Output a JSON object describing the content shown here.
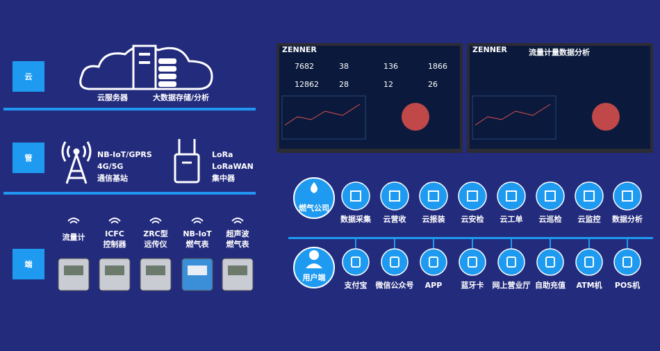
{
  "cloud": {
    "label": "云",
    "captions": [
      "云服务器",
      "大数据存储/分析"
    ]
  },
  "pipe": {
    "label": "管",
    "groups": [
      {
        "lines": [
          "NB-IoT/GPRS",
          "4G/5G",
          "通信基站"
        ]
      },
      {
        "lines": [
          "LoRa",
          "LoRaWAN",
          "集中器"
        ]
      }
    ]
  },
  "edge": {
    "label": "端",
    "devices": [
      {
        "lines": [
          "流量计"
        ]
      },
      {
        "lines": [
          "ICFC",
          "控制器"
        ]
      },
      {
        "lines": [
          "ZRC型",
          "远传仪"
        ]
      },
      {
        "lines": [
          "NB-IoT",
          "燃气表"
        ]
      },
      {
        "lines": [
          "超声波",
          "燃气表"
        ]
      }
    ]
  },
  "screens": [
    {
      "brand": "ZENNER",
      "stats": [
        7682,
        38,
        136,
        1866,
        12862,
        28,
        12,
        26
      ]
    },
    {
      "brand": "ZENNER",
      "title": "流量计量数据分析"
    }
  ],
  "company": {
    "label": "燃气公司",
    "services": [
      "数据采集",
      "云营收",
      "云报装",
      "云安检",
      "云工单",
      "云巡检",
      "云监控",
      "数据分析"
    ]
  },
  "user": {
    "label": "用户端",
    "channels": [
      "支付宝",
      "微信公众号",
      "APP",
      "蓝牙卡",
      "网上营业厅",
      "自助充值",
      "ATM机",
      "POS机"
    ]
  }
}
